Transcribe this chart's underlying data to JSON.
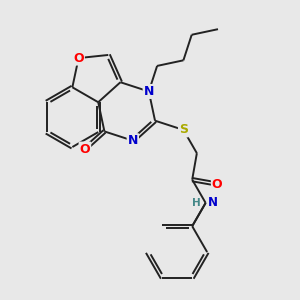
{
  "bg_color": "#e8e8e8",
  "bond_color": "#222222",
  "atom_colors": {
    "O": "#ff0000",
    "N": "#0000cc",
    "S": "#aaaa00",
    "H": "#448888",
    "C": "#222222"
  },
  "font_size": 8.5,
  "bond_width": 1.4,
  "dbo": 0.055
}
